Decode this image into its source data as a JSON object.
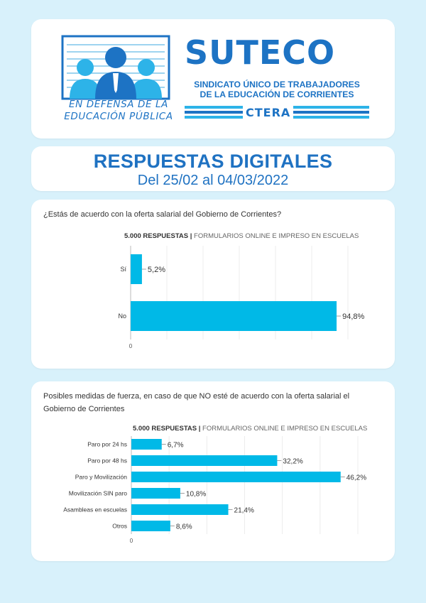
{
  "header": {
    "brand": "SUTECO",
    "union_line1": "SINDICATO ÚNICO DE TRABAJADORES",
    "union_line2": "DE LA EDUCACIÓN DE CORRIENTES",
    "slogan_line1": "EN DEFENSA DE LA",
    "slogan_line2": "EDUCACIÓN PÚBLICA",
    "ctera": "CTERA",
    "colors": {
      "brand_blue": "#1d73c4",
      "light_blue": "#2db3e8"
    }
  },
  "title": {
    "main": "RESPUESTAS DIGITALES",
    "sub": "Del 25/02 al 04/03/2022"
  },
  "chart_data": [
    {
      "type": "bar",
      "orientation": "horizontal",
      "question": "¿Estás de acuerdo con la oferta salarial del Gobierno de Corrientes?",
      "title_bold": "5.000 RESPUESTAS |",
      "title_rest": " FORMULARIOS ONLINE E IMPRESO EN ESCUELAS",
      "categories": [
        "Sí",
        "No"
      ],
      "values": [
        5.2,
        94.8
      ],
      "labels": [
        "5,2%",
        "94,8%"
      ],
      "xlim": [
        0,
        100
      ],
      "xtick": "0",
      "grid": true,
      "color": "#00b9e7"
    },
    {
      "type": "bar",
      "orientation": "horizontal",
      "question": "Posibles medidas de fuerza, en caso de que NO esté de acuerdo con la oferta salarial el Gobierno de Corrientes",
      "title_bold": "5.000 RESPUESTAS |",
      "title_rest": " FORMULARIOS ONLINE E IMPRESO EN ESCUELAS",
      "categories": [
        "Paro por 24 hs",
        "Paro por 48 hs",
        "Paro y Movilización",
        "Movilización SIN paro",
        "Asambleas en escuelas",
        "Otros"
      ],
      "values": [
        6.7,
        32.2,
        46.2,
        10.8,
        21.4,
        8.6
      ],
      "labels": [
        "6,7%",
        "32,2%",
        "46,2%",
        "10,8%",
        "21,4%",
        "8,6%"
      ],
      "xlim": [
        0,
        50
      ],
      "xtick": "0",
      "grid": true,
      "color": "#00b9e7"
    }
  ]
}
